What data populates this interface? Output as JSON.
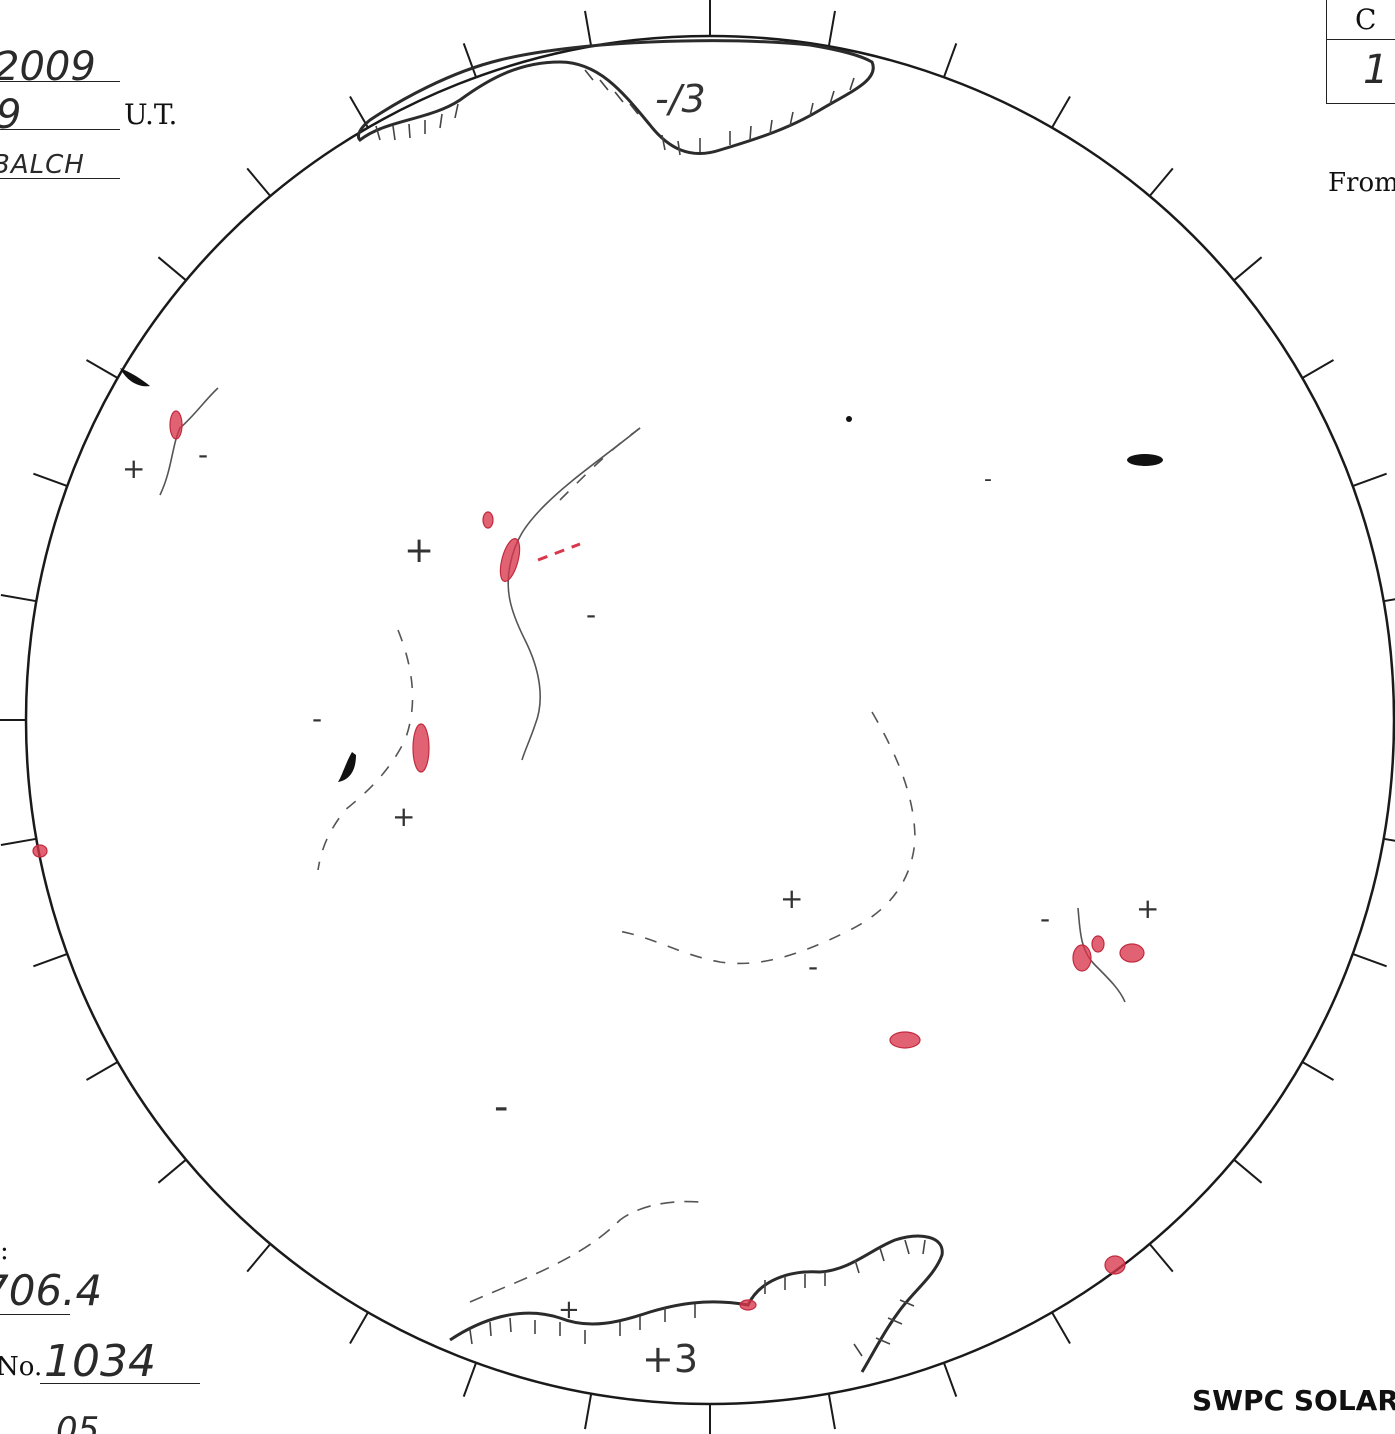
{
  "header": {
    "date_value": "2009",
    "time_value": "9",
    "time_unit": "U.T.",
    "observer_value": "BALCH"
  },
  "corner_table": {
    "column_label": "C",
    "value": "1"
  },
  "from_label": "From",
  "footer": {
    "colon_label": ":",
    "flux_value": "706.4",
    "rotation_prefix": "No.",
    "rotation_value": "1034",
    "rotation_sub": "05",
    "brand_title": "SWPC SOLAR S"
  },
  "disk": {
    "polarity_labels": {
      "north_pole": "-/3",
      "south_pole": "+3",
      "plus": "+",
      "minus": "-"
    }
  },
  "colors": {
    "ink": "#1a1a1a",
    "pencil": "#555555",
    "red_pencil": "#d9374b",
    "paper": "#ffffff"
  }
}
